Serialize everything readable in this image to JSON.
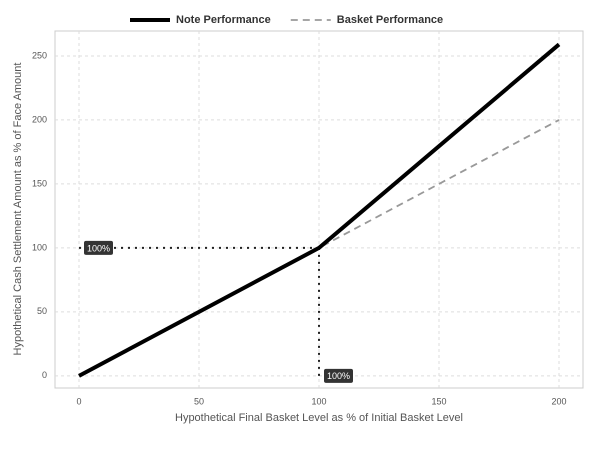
{
  "chart_data": {
    "type": "line",
    "x_label": "Hypothetical Final Basket Level as % of Initial Basket Level",
    "y_label": "Hypothetical Cash Settlement Amount as % of Face Amount",
    "x": [
      0,
      100,
      200
    ],
    "series": [
      {
        "name": "Note Performance",
        "color": "#000000",
        "style": "solid",
        "values": [
          0,
          100,
          259
        ]
      },
      {
        "name": "Basket Performance",
        "color": "#999999",
        "style": "dashed",
        "values": [
          0,
          100,
          200
        ]
      }
    ],
    "xlim": [
      -10,
      210
    ],
    "ylim": [
      -9.5,
      269.5
    ],
    "xticks": [
      0,
      50,
      100,
      150,
      200
    ],
    "yticks": [
      0,
      50,
      100,
      150,
      200,
      250
    ],
    "grid": true,
    "legend": "top",
    "reference_lines": [
      {
        "x": [
          0,
          100
        ],
        "y": [
          100,
          100
        ]
      },
      {
        "x": [
          100,
          100
        ],
        "y": [
          0,
          100
        ]
      }
    ],
    "annotations": [
      {
        "text": "100%",
        "x": 0,
        "y": 100
      },
      {
        "text": "100%",
        "x": 100,
        "y": 0
      }
    ]
  }
}
